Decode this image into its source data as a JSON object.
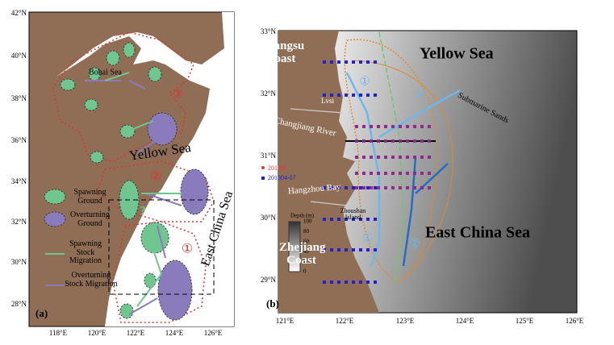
{
  "panel_a": {
    "tag": "(a)",
    "lat_labels": [
      "42°N",
      "40°N",
      "38°N",
      "36°N",
      "34°N",
      "32°N",
      "30°N",
      "28°N"
    ],
    "lon_labels": [
      "118°E",
      "120°E",
      "122°E",
      "124°E",
      "126°E"
    ],
    "bohai_sea": "Bohai Sea",
    "yellow_sea": "Yellow Sea",
    "east_china_sea": "East China Sea",
    "region_3": "③",
    "region_2": "②",
    "region_1": "①",
    "question": "?",
    "legend": [
      "Spawning Ground",
      "Overturning Ground",
      "Spawning Stock Migration",
      "Overturning Stock Migration"
    ]
  },
  "panel_b": {
    "tag": "(b)",
    "lat_labels": [
      "33°N",
      "32°N",
      "31°N",
      "30°N",
      "29°N"
    ],
    "lon_labels": [
      "121°E",
      "122°E",
      "123°E",
      "124°E",
      "125°E",
      "126°E"
    ],
    "yellow_sea": "Yellow Sea",
    "east_china_sea": "East China Sea",
    "jiangsu_coast": "Jiangsu Coast",
    "zhejiang_coast": "Zhejiang Coast",
    "changjiang_river": "Changjiang River",
    "hangzhou_bay": "Hangzhou Bay",
    "lvsi": "Lvsi",
    "submarine_sands": "Submarine Sands",
    "zhoushan_island": "Zhoushan Island",
    "route_labels": [
      "①",
      "①",
      "①",
      "②"
    ],
    "legend": [
      "201803",
      "201804-07"
    ],
    "colorbar": {
      "title": "Depth (m)",
      "ticks": [
        100,
        80,
        60,
        40,
        20,
        0
      ]
    }
  }
}
